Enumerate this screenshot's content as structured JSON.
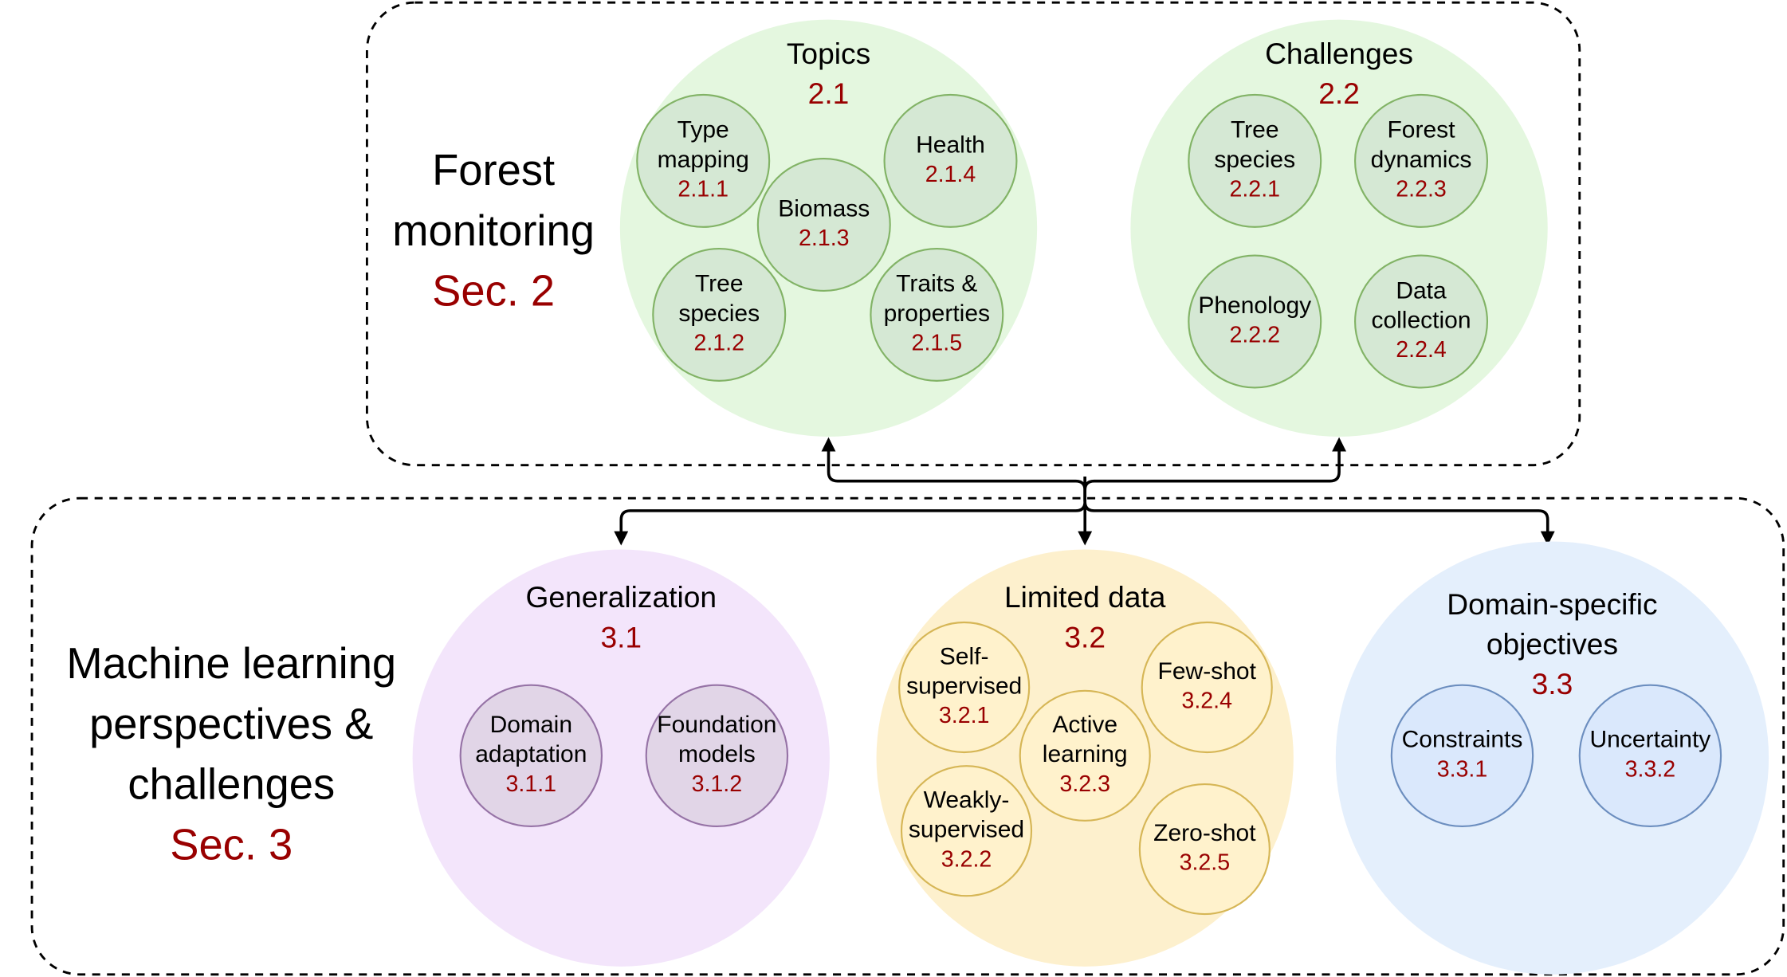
{
  "sections": [
    {
      "title": [
        "Forest",
        "monitoring"
      ],
      "ref": "Sec. 2",
      "groups": [
        {
          "title": [
            "Topics"
          ],
          "number": "2.1",
          "nodes": [
            {
              "label": [
                "Type",
                "mapping"
              ],
              "number": "2.1.1"
            },
            {
              "label": [
                "Biomass"
              ],
              "number": "2.1.3"
            },
            {
              "label": [
                "Health"
              ],
              "number": "2.1.4"
            },
            {
              "label": [
                "Tree",
                "species"
              ],
              "number": "2.1.2"
            },
            {
              "label": [
                "Traits &",
                "properties"
              ],
              "number": "2.1.5"
            }
          ]
        },
        {
          "title": [
            "Challenges"
          ],
          "number": "2.2",
          "nodes": [
            {
              "label": [
                "Tree",
                "species"
              ],
              "number": "2.2.1"
            },
            {
              "label": [
                "Forest",
                "dynamics"
              ],
              "number": "2.2.3"
            },
            {
              "label": [
                "Phenology"
              ],
              "number": "2.2.2"
            },
            {
              "label": [
                "Data",
                "collection"
              ],
              "number": "2.2.4"
            }
          ]
        }
      ]
    },
    {
      "title": [
        "Machine learning",
        "perspectives &",
        "challenges"
      ],
      "ref": "Sec. 3",
      "groups": [
        {
          "title": [
            "Generalization"
          ],
          "number": "3.1",
          "nodes": [
            {
              "label": [
                "Domain",
                "adaptation"
              ],
              "number": "3.1.1"
            },
            {
              "label": [
                "Foundation",
                "models"
              ],
              "number": "3.1.2"
            }
          ]
        },
        {
          "title": [
            "Limited data"
          ],
          "number": "3.2",
          "nodes": [
            {
              "label": [
                "Self-",
                "supervised"
              ],
              "number": "3.2.1"
            },
            {
              "label": [
                "Few-shot"
              ],
              "number": "3.2.4"
            },
            {
              "label": [
                "Active",
                "learning"
              ],
              "number": "3.2.3"
            },
            {
              "label": [
                "Weakly-",
                "supervised"
              ],
              "number": "3.2.2"
            },
            {
              "label": [
                "Zero-shot"
              ],
              "number": "3.2.5"
            }
          ]
        },
        {
          "title": [
            "Domain-specific",
            "objectives"
          ],
          "number": "3.3",
          "nodes": [
            {
              "label": [
                "Constraints"
              ],
              "number": "3.3.1"
            },
            {
              "label": [
                "Uncertainty"
              ],
              "number": "3.3.2"
            }
          ]
        }
      ]
    }
  ]
}
